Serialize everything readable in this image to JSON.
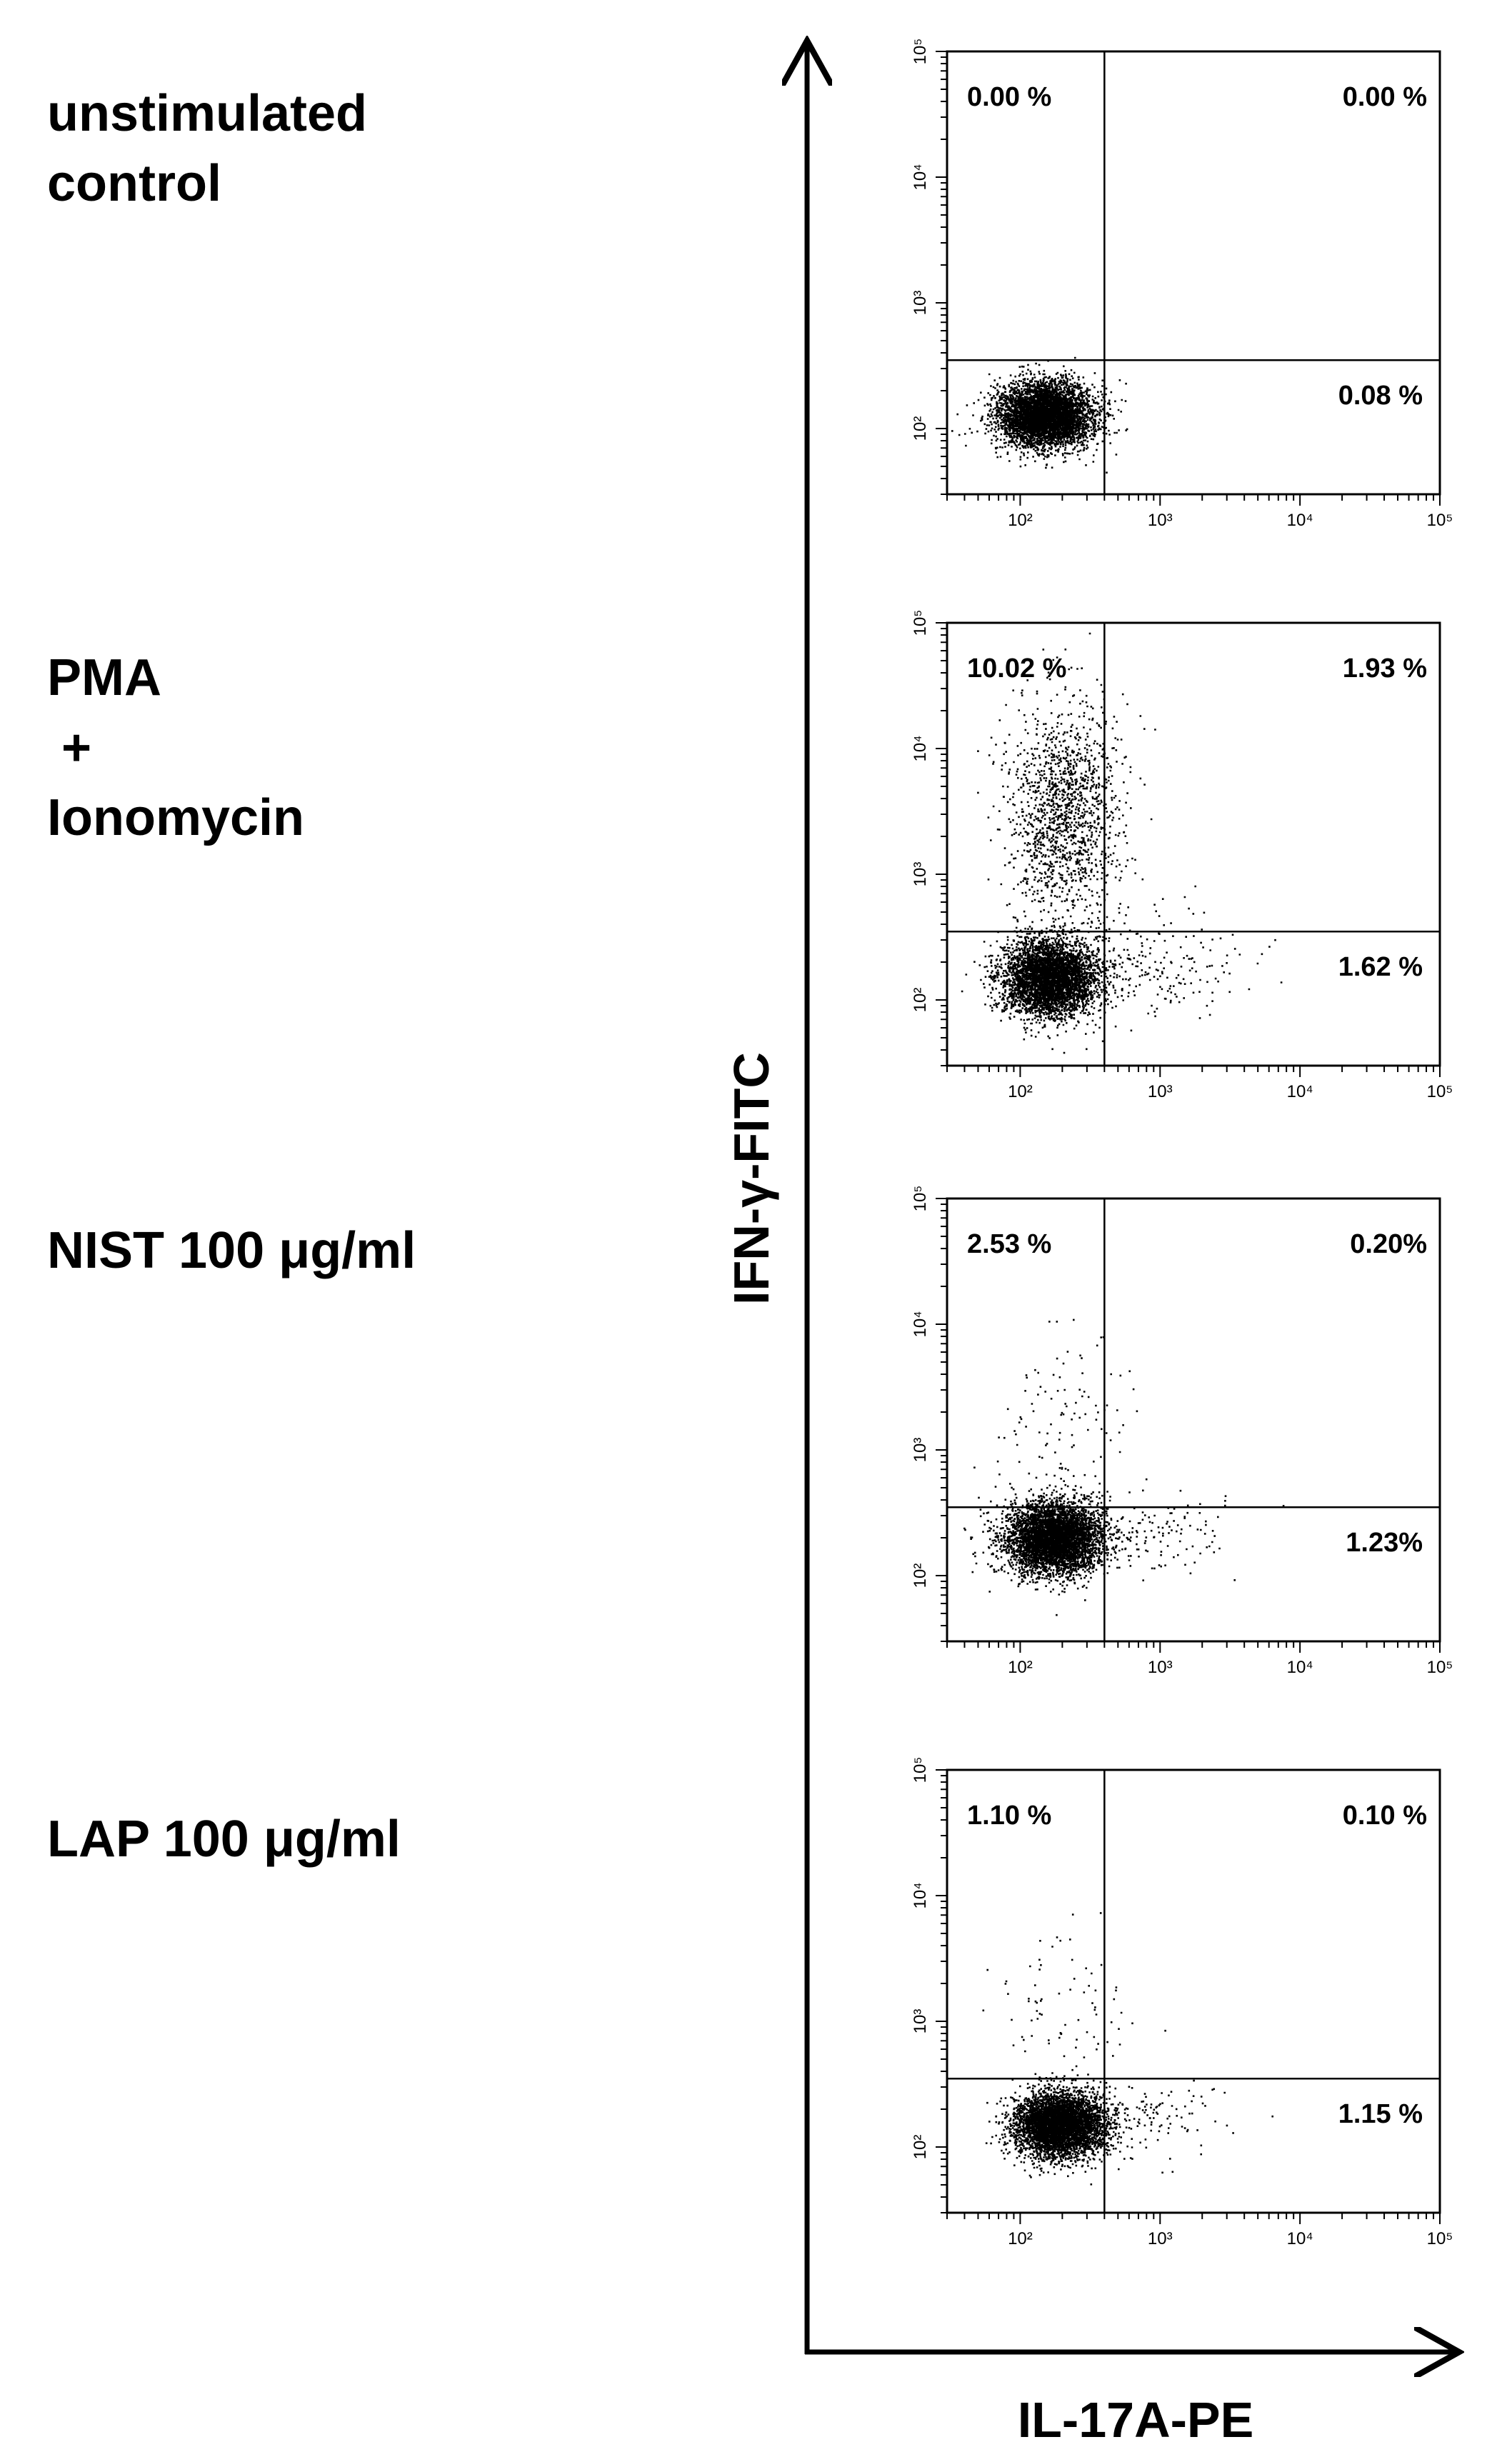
{
  "y_axis_title": "IFN-γ-FITC",
  "x_axis_title": "IL-17A-PE",
  "colors": {
    "ink": "#000000",
    "background": "#ffffff"
  },
  "tick_labels_display": [
    "10²",
    "10³",
    "10⁴",
    "10⁵"
  ],
  "chart_data": [
    {
      "type": "scatter",
      "condition_label": "unstimulated\ncontrol",
      "xlabel": "",
      "ylabel": "",
      "x_scale": "log",
      "y_scale": "log",
      "xlim": [
        30,
        100000
      ],
      "ylim": [
        30,
        100000
      ],
      "x_ticks": [
        100,
        1000,
        10000,
        100000
      ],
      "y_ticks": [
        100,
        1000,
        10000,
        100000
      ],
      "gate": {
        "x": 400,
        "y": 350
      },
      "quadrants": {
        "upper_left": "0.00 %",
        "upper_right": "0.00 %",
        "lower_right": "0.08 %"
      },
      "populations": [
        {
          "x_center": 150,
          "y_center": 130,
          "x_spread_decades": 0.17,
          "y_spread_decades": 0.13,
          "count": 5000
        }
      ]
    },
    {
      "type": "scatter",
      "condition_label": "PMA\n +\nIonomycin",
      "xlabel": "",
      "ylabel": "",
      "x_scale": "log",
      "y_scale": "log",
      "xlim": [
        30,
        100000
      ],
      "ylim": [
        30,
        100000
      ],
      "x_ticks": [
        100,
        1000,
        10000,
        100000
      ],
      "y_ticks": [
        100,
        1000,
        10000,
        100000
      ],
      "gate": {
        "x": 400,
        "y": 350
      },
      "quadrants": {
        "upper_left": "10.02 %",
        "upper_right": "1.93 %",
        "lower_right": "1.62 %"
      },
      "populations": [
        {
          "x_center": 160,
          "y_center": 150,
          "x_spread_decades": 0.17,
          "y_spread_decades": 0.15,
          "count": 4200
        },
        {
          "x_center": 200,
          "y_center": 3000,
          "x_spread_decades": 0.2,
          "y_spread_decades": 0.45,
          "count": 1500
        },
        {
          "x_center": 700,
          "y_center": 200,
          "x_spread_decades": 0.35,
          "y_spread_decades": 0.2,
          "count": 250
        }
      ]
    },
    {
      "type": "scatter",
      "condition_label": "NIST 100 μg/ml",
      "xlabel": "",
      "ylabel": "",
      "x_scale": "log",
      "y_scale": "log",
      "xlim": [
        30,
        100000
      ],
      "ylim": [
        30,
        100000
      ],
      "x_ticks": [
        100,
        1000,
        10000,
        100000
      ],
      "y_ticks": [
        100,
        1000,
        10000,
        100000
      ],
      "gate": {
        "x": 400,
        "y": 350
      },
      "quadrants": {
        "upper_left": "2.53 %",
        "upper_right": "0.20%",
        "lower_right": "1.23%"
      },
      "populations": [
        {
          "x_center": 170,
          "y_center": 200,
          "x_spread_decades": 0.17,
          "y_spread_decades": 0.14,
          "count": 4800
        },
        {
          "x_center": 200,
          "y_center": 1500,
          "x_spread_decades": 0.25,
          "y_spread_decades": 0.35,
          "count": 120
        },
        {
          "x_center": 800,
          "y_center": 220,
          "x_spread_decades": 0.3,
          "y_spread_decades": 0.15,
          "count": 150
        }
      ]
    },
    {
      "type": "scatter",
      "condition_label": "LAP 100 μg/ml",
      "xlabel": "",
      "ylabel": "",
      "x_scale": "log",
      "y_scale": "log",
      "xlim": [
        30,
        100000
      ],
      "ylim": [
        30,
        100000
      ],
      "x_ticks": [
        100,
        1000,
        10000,
        100000
      ],
      "y_ticks": [
        100,
        1000,
        10000,
        100000
      ],
      "gate": {
        "x": 400,
        "y": 350
      },
      "quadrants": {
        "upper_left": "1.10 %",
        "upper_right": "0.10 %",
        "lower_right": "1.15 %"
      },
      "populations": [
        {
          "x_center": 190,
          "y_center": 150,
          "x_spread_decades": 0.16,
          "y_spread_decades": 0.13,
          "count": 4800
        },
        {
          "x_center": 200,
          "y_center": 1200,
          "x_spread_decades": 0.25,
          "y_spread_decades": 0.3,
          "count": 80
        },
        {
          "x_center": 800,
          "y_center": 170,
          "x_spread_decades": 0.3,
          "y_spread_decades": 0.15,
          "count": 120
        }
      ]
    }
  ]
}
